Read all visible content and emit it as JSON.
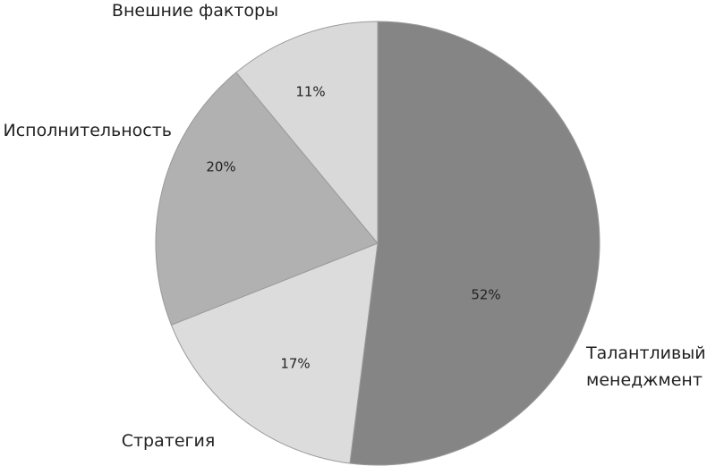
{
  "chart_data": {
    "type": "pie",
    "categories": [
      "Талантливый менеджмент",
      "Стратегия",
      "Исполнительность",
      "Внешние факторы"
    ],
    "values": [
      52,
      17,
      20,
      11
    ],
    "value_labels": [
      "52%",
      "17%",
      "20%",
      "11%"
    ],
    "colors": [
      "#858585",
      "#dcdcdc",
      "#b1b1b1",
      "#d9d9d9"
    ]
  }
}
